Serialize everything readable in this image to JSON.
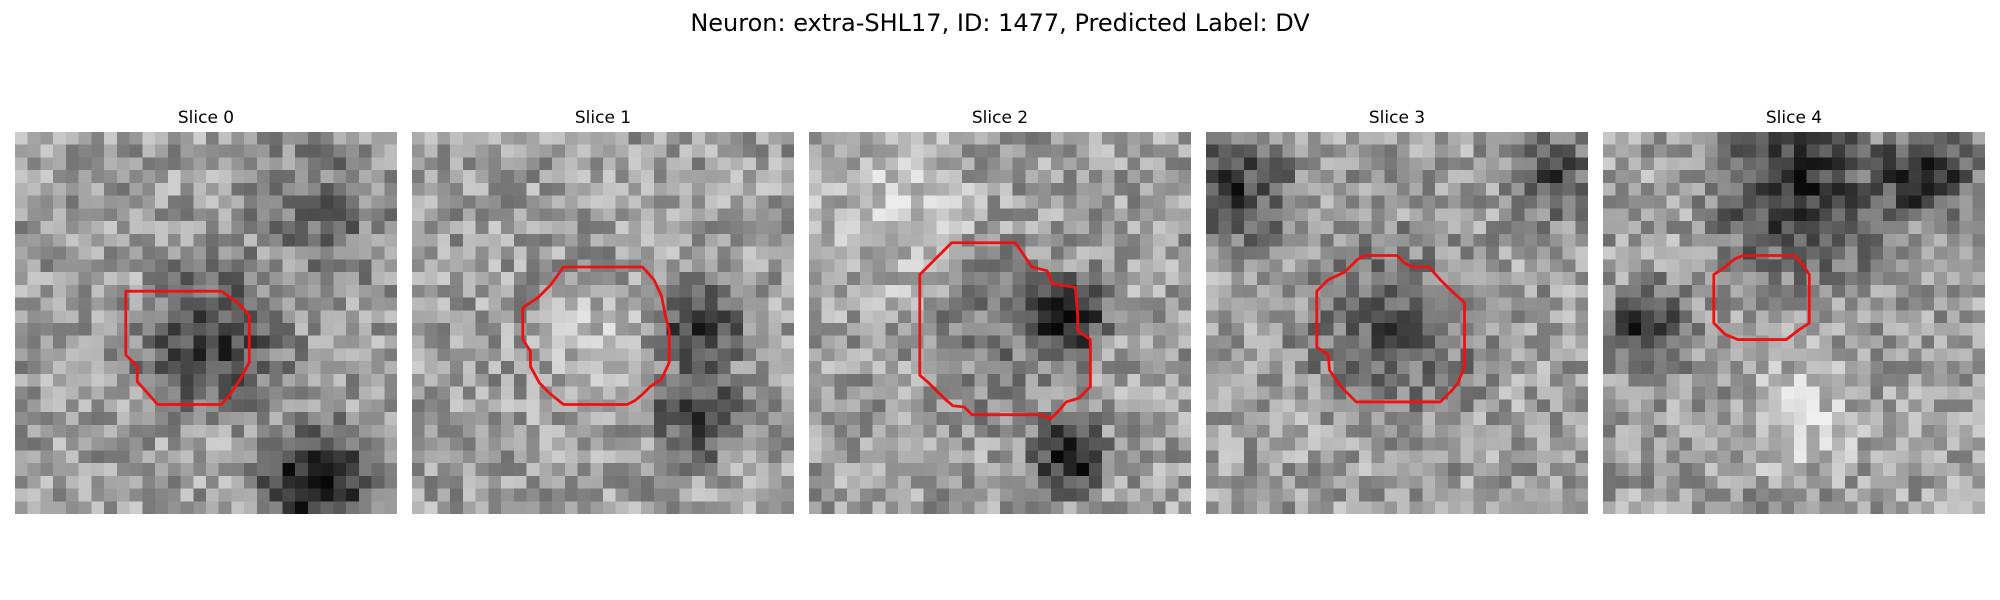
{
  "title": "Neuron: extra-SHL17, ID: 1477, Predicted Label: DV",
  "colors": {
    "contour": "#ee1111"
  },
  "panels": [
    {
      "title": "Slice 0"
    },
    {
      "title": "Slice 1"
    },
    {
      "title": "Slice 2"
    },
    {
      "title": "Slice 3"
    },
    {
      "title": "Slice 4"
    }
  ]
}
